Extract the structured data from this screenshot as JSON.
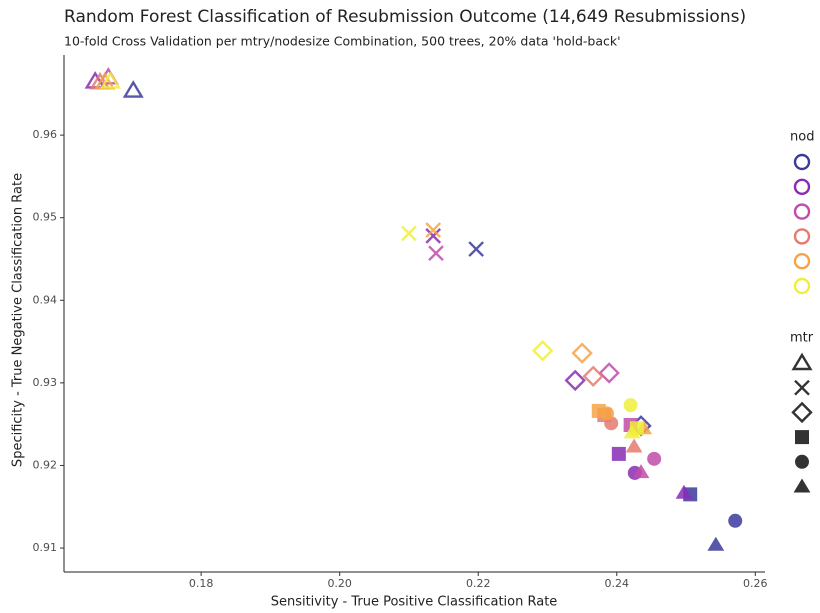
{
  "chart_data": {
    "type": "scatter",
    "title": "Random Forest Classification of Resubmission Outcome (14,649 Resubmissions)",
    "subtitle": "10-fold Cross Validation per mtry/nodesize Combination, 500 trees, 20% data 'hold-back'",
    "x_label": "Sensitivity - True Positive Classification Rate",
    "y_label": "Specificity - True Negative Classification Rate",
    "xlim": [
      0.1602,
      0.2614
    ],
    "ylim": [
      0.9071,
      0.9697
    ],
    "xticks": [
      0.18,
      {
        "value": 0.2,
        "label": "0.20"
      },
      0.22,
      0.24,
      0.26
    ],
    "yticks": [
      0.91,
      0.92,
      0.93,
      0.94,
      0.95,
      0.96
    ],
    "color_legend_title": "nod",
    "shape_legend_title": "mtr",
    "shapes": [
      "triangle-open",
      "cross",
      "diamond-open",
      "square",
      "circle",
      "triangle"
    ],
    "series": [
      {
        "color": "#3b3a9c",
        "shape": [
          0,
          1,
          2,
          3,
          4,
          5
        ],
        "x": [
          0.1702,
          0.2197,
          0.2435,
          0.2506,
          0.2571,
          0.2543
        ],
        "y": [
          0.9654,
          0.9462,
          0.9248,
          0.9165,
          0.9133,
          0.9104
        ]
      },
      {
        "color": "#8a2bb5",
        "shape": [
          0,
          1,
          2,
          3,
          4,
          5
        ],
        "x": [
          0.1647,
          0.2135,
          0.234,
          0.2403,
          0.2426,
          0.2497
        ],
        "y": [
          0.9665,
          0.9478,
          0.9303,
          0.9214,
          0.9191,
          0.9167
        ]
      },
      {
        "color": "#c04ca8",
        "shape": [
          0,
          1,
          2,
          3,
          4,
          5
        ],
        "x": [
          0.1666,
          0.2139,
          0.2389,
          0.242,
          0.2454,
          0.2435
        ],
        "y": [
          0.967,
          0.9457,
          0.9312,
          0.9249,
          0.9208,
          0.9192
        ]
      },
      {
        "color": "#e57a70",
        "shape": [
          0,
          2,
          3,
          4,
          5
        ],
        "x": [
          0.1654,
          0.2366,
          0.2382,
          0.2392,
          0.2425
        ],
        "y": [
          0.9664,
          0.9308,
          0.9261,
          0.9251,
          0.9223
        ]
      },
      {
        "color": "#f5a446",
        "shape": [
          0,
          1,
          2,
          3,
          4,
          5
        ],
        "x": [
          0.1661,
          0.2135,
          0.235,
          0.2374,
          0.2386,
          0.2439
        ],
        "y": [
          0.9664,
          0.9485,
          0.9336,
          0.9266,
          0.9263,
          0.9245
        ]
      },
      {
        "color": "#f0ee3a",
        "shape": [
          0,
          1,
          2,
          3,
          4,
          5
        ],
        "x": [
          0.1669,
          0.21,
          0.2293,
          0.2429,
          0.242,
          0.2422
        ],
        "y": [
          0.9665,
          0.9481,
          0.9339,
          0.9245,
          0.9273,
          0.924
        ]
      }
    ]
  }
}
